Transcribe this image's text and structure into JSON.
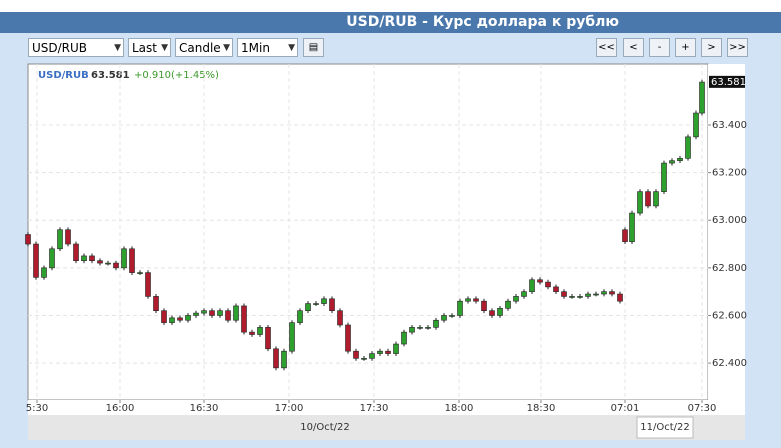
{
  "header": {
    "title": "USD/RUB - Курс доллара к рублю"
  },
  "toolbar": {
    "selects": [
      "USD/RUB",
      "Last",
      "Candle",
      "1Min"
    ],
    "buttons": [
      "<<",
      "<",
      "-",
      "+",
      ">",
      ">>"
    ]
  },
  "legend": {
    "symbol": "USD/RUB",
    "last": 63.581,
    "change_text": "+0.910(+1.45%)"
  },
  "chart_data": {
    "type": "candlestick",
    "x": [
      0,
      8,
      16,
      24,
      32,
      40,
      48,
      56,
      64,
      72,
      80,
      88,
      96,
      104,
      112,
      120,
      128,
      136,
      144,
      152,
      160,
      168,
      176,
      184,
      192,
      200,
      208,
      216,
      224,
      232,
      240,
      248,
      256,
      264,
      272,
      280,
      288,
      296,
      304,
      312,
      320,
      328,
      336,
      344,
      352,
      360,
      368,
      376,
      384,
      392,
      400,
      408,
      416,
      424,
      432,
      440,
      448,
      456,
      464,
      472,
      480,
      488,
      496,
      504,
      512,
      520,
      528,
      536,
      544,
      552,
      560,
      568,
      576,
      584,
      592,
      597,
      604,
      612,
      620,
      628,
      636,
      644,
      652,
      660,
      668,
      674
    ],
    "open": [
      62.94,
      62.9,
      62.76,
      62.8,
      62.88,
      62.96,
      62.9,
      62.83,
      62.85,
      62.83,
      62.82,
      62.82,
      62.8,
      62.88,
      62.78,
      62.78,
      62.68,
      62.62,
      62.57,
      62.59,
      62.58,
      62.6,
      62.61,
      62.62,
      62.6,
      62.62,
      62.58,
      62.64,
      62.53,
      62.52,
      62.55,
      62.46,
      62.38,
      62.45,
      62.57,
      62.62,
      62.65,
      62.65,
      62.67,
      62.62,
      62.56,
      62.45,
      62.42,
      62.42,
      62.44,
      62.45,
      62.44,
      62.48,
      62.53,
      62.55,
      62.55,
      62.55,
      62.58,
      62.6,
      62.6,
      62.66,
      62.67,
      62.66,
      62.62,
      62.6,
      62.63,
      62.66,
      62.68,
      62.7,
      62.75,
      62.74,
      62.72,
      62.7,
      62.68,
      62.68,
      62.68,
      62.69,
      62.69,
      62.7,
      62.69,
      62.96,
      62.91,
      63.03,
      63.12,
      63.06,
      63.12,
      63.24,
      63.25,
      63.26,
      63.35,
      63.45
    ],
    "high": [
      62.95,
      62.91,
      62.81,
      62.89,
      62.97,
      62.97,
      62.91,
      62.86,
      62.86,
      62.84,
      62.83,
      62.83,
      62.89,
      62.89,
      62.79,
      62.79,
      62.69,
      62.63,
      62.6,
      62.6,
      62.61,
      62.62,
      62.63,
      62.63,
      62.63,
      62.63,
      62.65,
      62.65,
      62.54,
      62.56,
      62.56,
      62.47,
      62.46,
      62.58,
      62.63,
      62.66,
      62.66,
      62.68,
      62.68,
      62.63,
      62.57,
      62.46,
      62.43,
      62.45,
      62.46,
      62.46,
      62.49,
      62.54,
      62.56,
      62.56,
      62.56,
      62.59,
      62.61,
      62.61,
      62.67,
      62.68,
      62.68,
      62.67,
      62.63,
      62.64,
      62.67,
      62.69,
      62.71,
      62.76,
      62.76,
      62.75,
      62.73,
      62.71,
      62.69,
      62.69,
      62.7,
      62.7,
      62.71,
      62.71,
      62.7,
      62.97,
      63.04,
      63.13,
      63.13,
      63.13,
      63.25,
      63.26,
      63.27,
      63.36,
      63.46,
      63.59
    ],
    "low": [
      62.89,
      62.75,
      62.75,
      62.79,
      62.87,
      62.89,
      62.82,
      62.82,
      62.82,
      62.81,
      62.81,
      62.79,
      62.79,
      62.77,
      62.77,
      62.67,
      62.61,
      62.56,
      62.56,
      62.57,
      62.57,
      62.59,
      62.6,
      62.59,
      62.59,
      62.57,
      62.57,
      62.52,
      62.51,
      62.51,
      62.45,
      62.37,
      62.37,
      62.44,
      62.56,
      62.61,
      62.64,
      62.64,
      62.61,
      62.55,
      62.44,
      62.41,
      62.41,
      62.41,
      62.43,
      62.43,
      62.43,
      62.47,
      62.52,
      62.54,
      62.54,
      62.54,
      62.57,
      62.59,
      62.59,
      62.65,
      62.65,
      62.61,
      62.59,
      62.59,
      62.62,
      62.65,
      62.67,
      62.69,
      62.73,
      62.71,
      62.69,
      62.67,
      62.67,
      62.67,
      62.67,
      62.68,
      62.68,
      62.68,
      62.65,
      62.9,
      62.9,
      63.02,
      63.05,
      63.05,
      63.11,
      63.23,
      63.24,
      63.25,
      63.34,
      63.44
    ],
    "close": [
      62.9,
      62.76,
      62.8,
      62.88,
      62.96,
      62.9,
      62.83,
      62.85,
      62.83,
      62.82,
      62.82,
      62.8,
      62.88,
      62.78,
      62.78,
      62.68,
      62.62,
      62.57,
      62.59,
      62.58,
      62.6,
      62.61,
      62.62,
      62.6,
      62.62,
      62.58,
      62.64,
      62.53,
      62.52,
      62.55,
      62.46,
      62.38,
      62.45,
      62.57,
      62.62,
      62.65,
      62.65,
      62.67,
      62.62,
      62.56,
      62.45,
      62.42,
      62.42,
      62.44,
      62.45,
      62.44,
      62.48,
      62.53,
      62.55,
      62.55,
      62.55,
      62.58,
      62.6,
      62.6,
      62.66,
      62.67,
      62.66,
      62.62,
      62.6,
      62.63,
      62.66,
      62.68,
      62.7,
      62.75,
      62.74,
      62.72,
      62.7,
      62.68,
      62.68,
      62.68,
      62.69,
      62.69,
      62.7,
      62.69,
      62.66,
      62.91,
      63.03,
      63.12,
      63.06,
      63.12,
      63.24,
      63.25,
      63.26,
      63.35,
      63.45,
      63.58
    ],
    "up_color": "#2ea02e",
    "down_color": "#b01c2e",
    "xlim": [
      0,
      680
    ],
    "xticks": [
      {
        "value": 9,
        "label": "5:30"
      },
      {
        "value": 92,
        "label": "16:00"
      },
      {
        "value": 176,
        "label": "16:30"
      },
      {
        "value": 261,
        "label": "17:00"
      },
      {
        "value": 346,
        "label": "17:30"
      },
      {
        "value": 431,
        "label": "18:00"
      },
      {
        "value": 513,
        "label": "18:30"
      },
      {
        "value": 597,
        "label": "07:01"
      },
      {
        "value": 674,
        "label": "07:30"
      }
    ],
    "ylim": [
      62.245,
      63.656
    ],
    "yticks": [
      {
        "value": 62.4,
        "label": "62.400"
      },
      {
        "value": 62.6,
        "label": "62.600"
      },
      {
        "value": 62.8,
        "label": "62.800"
      },
      {
        "value": 63.0,
        "label": "63.000"
      },
      {
        "value": 63.2,
        "label": "63.200"
      },
      {
        "value": 63.4,
        "label": "63.400"
      }
    ],
    "last_price": 63.581,
    "grid": true,
    "dates": [
      {
        "value": 297,
        "label": "10/Oct/22"
      },
      {
        "value": 637,
        "label": "11/Oct/22"
      }
    ]
  }
}
